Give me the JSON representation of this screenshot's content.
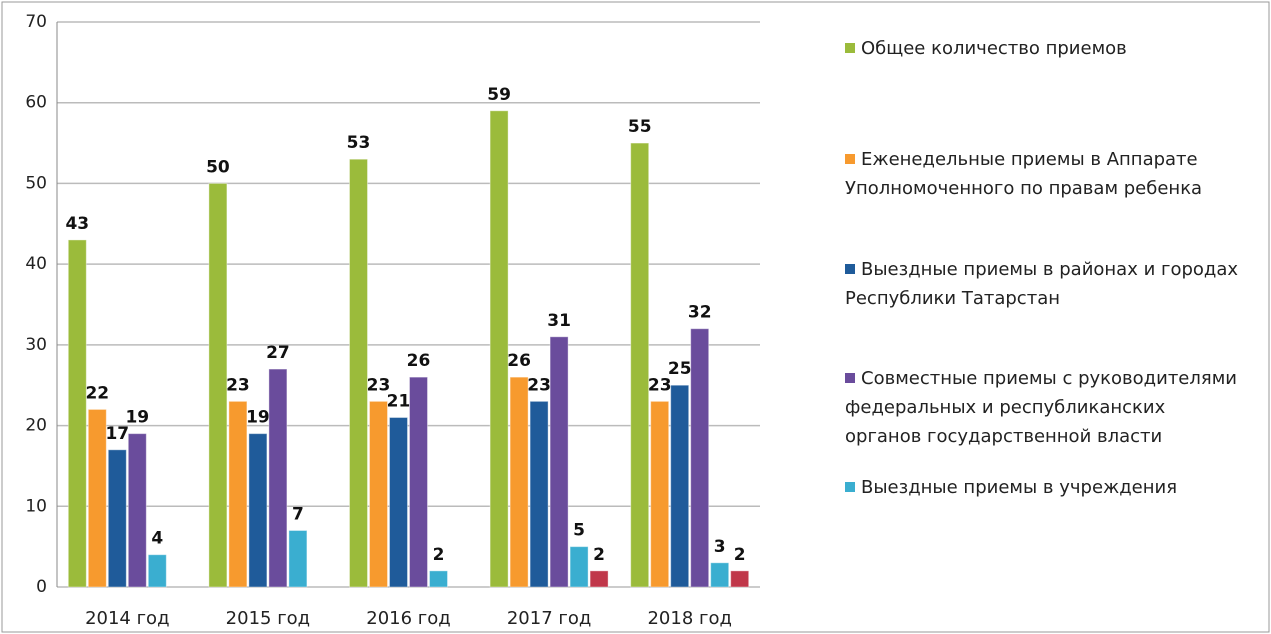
{
  "chart_data": {
    "type": "bar",
    "categories": [
      "2014 год",
      "2015 год",
      "2016 год",
      "2017 год",
      "2018 год"
    ],
    "series": [
      {
        "name": "Общее количество приемов",
        "color": "#9bbb3b",
        "values": [
          43,
          50,
          53,
          59,
          55
        ]
      },
      {
        "name": "Еженедельные приемы в Аппарате Уполномоченного по правам ребенка",
        "color": "#f79a2e",
        "values": [
          22,
          23,
          23,
          26,
          23
        ]
      },
      {
        "name": "Выездные приемы в районах и городах Республики Татарстан",
        "color": "#1f5b9a",
        "values": [
          17,
          19,
          21,
          23,
          25
        ]
      },
      {
        "name": "Совместные приемы с руководителями федеральных и республиканских органов государственной власти",
        "color": "#6a4c9c",
        "values": [
          19,
          27,
          26,
          31,
          32
        ]
      },
      {
        "name": "Выездные приемы в учреждения",
        "color": "#3aaed0",
        "values": [
          4,
          7,
          2,
          5,
          3
        ]
      },
      {
        "color": "#c0374a",
        "values": [
          null,
          null,
          null,
          2,
          2
        ]
      }
    ],
    "ylim": [
      0,
      70
    ],
    "yticks": [
      0,
      10,
      20,
      30,
      40,
      50,
      60,
      70
    ],
    "grid": true,
    "legend": "right"
  }
}
